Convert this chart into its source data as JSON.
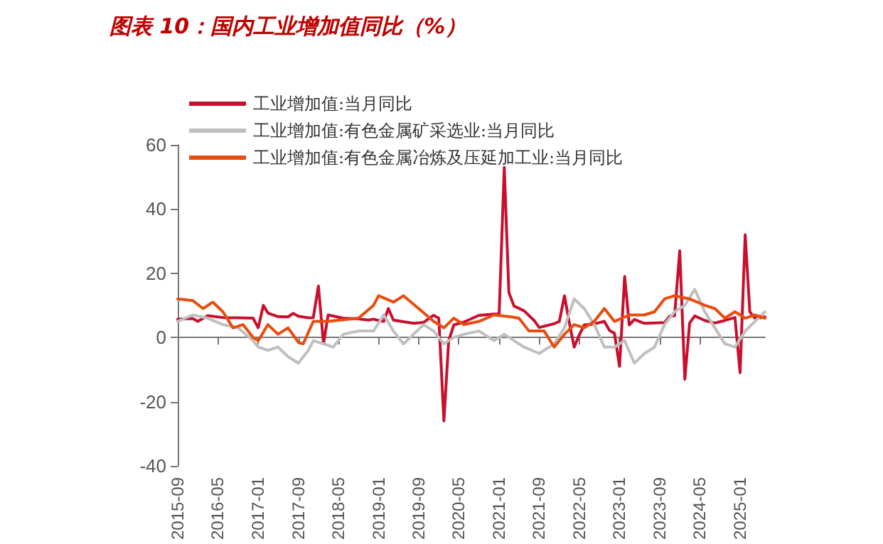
{
  "chart_data": {
    "type": "line",
    "title": "图表 10：国内工业增加值同比（%）",
    "xlim": [
      "2015-09",
      "2025-06"
    ],
    "xticks": [
      "2015-09",
      "2016-05",
      "2017-01",
      "2017-09",
      "2018-05",
      "2019-01",
      "2019-09",
      "2020-05",
      "2021-01",
      "2021-09",
      "2022-05",
      "2023-01",
      "2023-09",
      "2024-05",
      "2025-01"
    ],
    "ylim": [
      -40,
      60
    ],
    "yticks": [
      -40,
      -20,
      0,
      20,
      40,
      60
    ],
    "legend": "top left",
    "marker": "none",
    "line_style": "solid",
    "series": [
      {
        "name": "工业增加值:当月同比",
        "color": "#c8102e",
        "x": [
          "2015-09",
          "2015-12",
          "2016-01",
          "2016-03",
          "2016-06",
          "2016-09",
          "2016-12",
          "2017-01",
          "2017-02",
          "2017-03",
          "2017-05",
          "2017-07",
          "2017-08",
          "2017-09",
          "2017-11",
          "2017-12",
          "2018-01",
          "2018-02",
          "2018-03",
          "2018-06",
          "2018-09",
          "2018-11",
          "2018-12",
          "2019-01",
          "2019-02",
          "2019-03",
          "2019-04",
          "2019-08",
          "2019-10",
          "2019-12",
          "2020-01",
          "2020-02",
          "2020-03",
          "2020-04",
          "2020-06",
          "2020-09",
          "2020-12",
          "2021-01",
          "2021-02",
          "2021-03",
          "2021-04",
          "2021-06",
          "2021-08",
          "2021-09",
          "2021-12",
          "2022-01",
          "2022-02",
          "2022-03",
          "2022-04",
          "2022-05",
          "2022-06",
          "2022-08",
          "2022-10",
          "2022-11",
          "2022-12",
          "2023-01",
          "2023-02",
          "2023-03",
          "2023-04",
          "2023-06",
          "2023-08",
          "2023-10",
          "2023-11",
          "2023-12",
          "2024-01",
          "2024-02",
          "2024-03",
          "2024-04",
          "2024-06",
          "2024-08",
          "2024-10",
          "2024-12",
          "2025-01",
          "2025-02",
          "2025-03",
          "2025-04",
          "2025-05",
          "2025-06"
        ],
        "values": [
          5.7,
          5.9,
          5,
          6.8,
          6.2,
          6.1,
          6,
          3,
          10,
          7.6,
          6.5,
          6.4,
          7.5,
          6.6,
          6.1,
          6.2,
          16,
          -2,
          7,
          6,
          5.8,
          5.4,
          5.7,
          5.3,
          5,
          9,
          5.4,
          4.4,
          4.7,
          6.9,
          6,
          -26,
          -1,
          3.9,
          4.8,
          6.9,
          7.3,
          7.3,
          53,
          14,
          9.8,
          8.3,
          5.3,
          3.1,
          4.3,
          5,
          13,
          5,
          -3,
          0.7,
          3.9,
          4.2,
          5,
          2.2,
          1.3,
          -9,
          19,
          3.9,
          5.6,
          4.4,
          4.5,
          4.6,
          6.6,
          6.8,
          27,
          -13,
          4.5,
          6.7,
          5.3,
          4.5,
          5.3,
          6.2,
          -11,
          32,
          8,
          6,
          6.1,
          6.4
        ]
      },
      {
        "name": "工业增加值:有色金属矿采选业:当月同比",
        "color": "#bfbfbf",
        "x": [
          "2015-09",
          "2015-12",
          "2016-03",
          "2016-06",
          "2016-09",
          "2016-12",
          "2017-01",
          "2017-03",
          "2017-05",
          "2017-07",
          "2017-09",
          "2017-11",
          "2017-12",
          "2018-02",
          "2018-04",
          "2018-06",
          "2018-09",
          "2018-12",
          "2019-02",
          "2019-04",
          "2019-06",
          "2019-08",
          "2019-10",
          "2019-12",
          "2020-02",
          "2020-04",
          "2020-06",
          "2020-09",
          "2020-12",
          "2021-02",
          "2021-04",
          "2021-06",
          "2021-09",
          "2021-12",
          "2022-02",
          "2022-04",
          "2022-06",
          "2022-08",
          "2022-10",
          "2022-12",
          "2023-02",
          "2023-04",
          "2023-06",
          "2023-08",
          "2023-10",
          "2023-12",
          "2024-02",
          "2024-04",
          "2024-06",
          "2024-08",
          "2024-10",
          "2024-12",
          "2025-02",
          "2025-04",
          "2025-06"
        ],
        "values": [
          5,
          7,
          6,
          4,
          3,
          -1,
          -3,
          -4,
          -3,
          -6,
          -8,
          -4,
          -1,
          -2,
          -3,
          1,
          2,
          2,
          7,
          2,
          -2,
          1,
          4,
          2,
          -2,
          0,
          1,
          2,
          -1,
          1,
          -1,
          -3,
          -5,
          -2,
          3,
          12,
          9,
          4,
          -3,
          -3,
          -1,
          -8,
          -5,
          -3,
          4,
          8,
          10,
          15,
          8,
          3,
          -2,
          -3,
          2,
          5,
          8
        ]
      },
      {
        "name": "工业增加值:有色金属冶炼及压延加工业:当月同比",
        "color": "#e84c0e",
        "x": [
          "2015-09",
          "2015-12",
          "2016-02",
          "2016-04",
          "2016-06",
          "2016-08",
          "2016-10",
          "2016-12",
          "2017-01",
          "2017-03",
          "2017-05",
          "2017-07",
          "2017-09",
          "2017-10",
          "2017-12",
          "2018-03",
          "2018-06",
          "2018-09",
          "2018-12",
          "2019-01",
          "2019-04",
          "2019-06",
          "2019-09",
          "2019-12",
          "2020-02",
          "2020-04",
          "2020-06",
          "2020-09",
          "2020-12",
          "2021-03",
          "2021-05",
          "2021-07",
          "2021-10",
          "2021-12",
          "2022-02",
          "2022-04",
          "2022-06",
          "2022-08",
          "2022-10",
          "2022-12",
          "2023-03",
          "2023-06",
          "2023-08",
          "2023-10",
          "2023-12",
          "2024-03",
          "2024-06",
          "2024-08",
          "2024-10",
          "2024-12",
          "2025-02",
          "2025-04",
          "2025-06"
        ],
        "values": [
          12,
          11.5,
          9,
          11,
          8,
          3,
          4,
          0,
          -1,
          4,
          1,
          3,
          -1.5,
          -2,
          5,
          5,
          5.5,
          6,
          10,
          13,
          11,
          13,
          9,
          5,
          3,
          6,
          4,
          5,
          7,
          6.5,
          6,
          2,
          2,
          -3,
          1,
          4,
          3,
          5,
          9,
          5,
          7,
          7,
          8,
          12,
          13,
          12,
          10,
          9,
          6,
          8,
          6,
          7,
          6
        ]
      }
    ]
  }
}
